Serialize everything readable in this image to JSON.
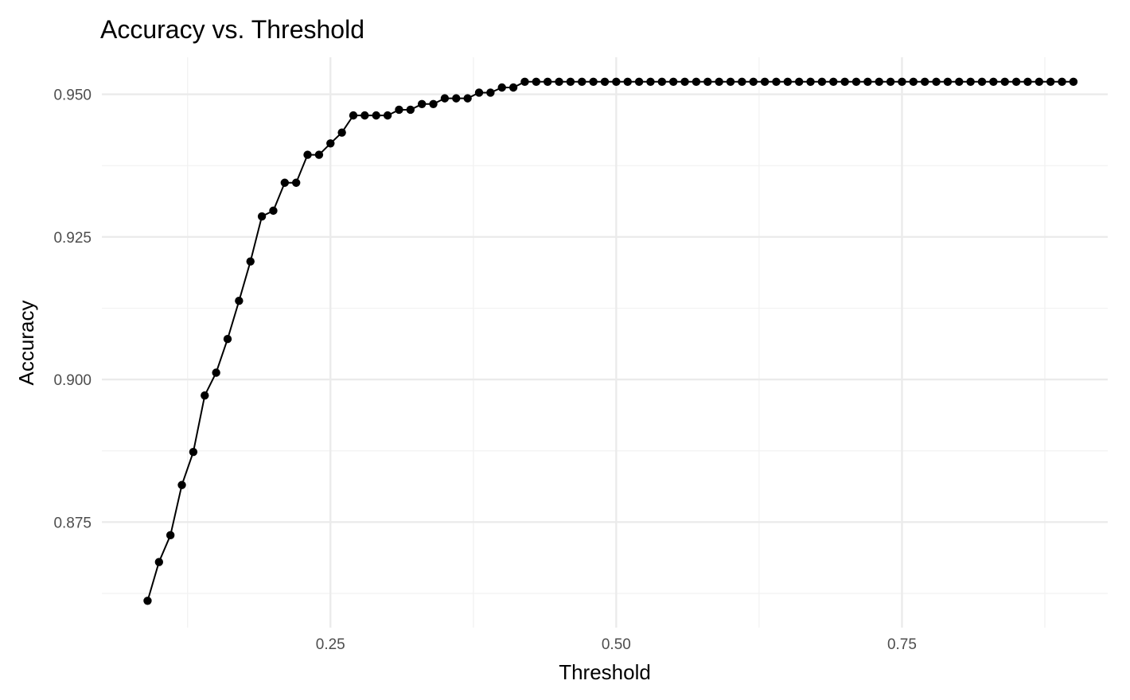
{
  "chart_data": {
    "type": "line",
    "title": "Accuracy vs. Threshold",
    "xlabel": "Threshold",
    "ylabel": "Accuracy",
    "xlim": [
      0.05,
      0.93
    ],
    "ylim": [
      0.8565,
      0.9565
    ],
    "x_ticks": [
      0.25,
      0.5,
      0.75
    ],
    "x_tick_labels": [
      "0.25",
      "0.50",
      "0.75"
    ],
    "x_minor_ticks": [
      0.125,
      0.375,
      0.625,
      0.875
    ],
    "y_ticks": [
      0.875,
      0.9,
      0.925,
      0.95
    ],
    "y_tick_labels": [
      "0.875",
      "0.900",
      "0.925",
      "0.950"
    ],
    "y_minor_ticks": [
      0.8625,
      0.8875,
      0.9125,
      0.9375
    ],
    "grid": true,
    "legend": "none",
    "colors": {
      "line": "#000000",
      "point": "#000000",
      "grid_major": "#ebebeb",
      "grid_minor": "#f2f2f2"
    },
    "x": [
      0.09,
      0.1,
      0.11,
      0.12,
      0.13,
      0.14,
      0.15,
      0.16,
      0.17,
      0.18,
      0.19,
      0.2,
      0.21,
      0.22,
      0.23,
      0.24,
      0.25,
      0.26,
      0.27,
      0.28,
      0.29,
      0.3,
      0.31,
      0.32,
      0.33,
      0.34,
      0.35,
      0.36,
      0.37,
      0.38,
      0.39,
      0.4,
      0.41,
      0.42,
      0.43,
      0.44,
      0.45,
      0.46,
      0.47,
      0.48,
      0.49,
      0.5,
      0.51,
      0.52,
      0.53,
      0.54,
      0.55,
      0.56,
      0.57,
      0.58,
      0.59,
      0.6,
      0.61,
      0.62,
      0.63,
      0.64,
      0.65,
      0.66,
      0.67,
      0.68,
      0.69,
      0.7,
      0.71,
      0.72,
      0.73,
      0.74,
      0.75,
      0.76,
      0.77,
      0.78,
      0.79,
      0.8,
      0.81,
      0.82,
      0.83,
      0.84,
      0.85,
      0.86,
      0.87,
      0.88,
      0.89,
      0.9
    ],
    "series": [
      {
        "values": [
          0.8612,
          0.868,
          0.8727,
          0.8815,
          0.8873,
          0.8972,
          0.9012,
          0.9071,
          0.9138,
          0.9207,
          0.9286,
          0.9296,
          0.9345,
          0.9345,
          0.9394,
          0.9394,
          0.9414,
          0.9433,
          0.9463,
          0.9463,
          0.9463,
          0.9463,
          0.9473,
          0.9473,
          0.9483,
          0.9483,
          0.9493,
          0.9493,
          0.9493,
          0.9503,
          0.9503,
          0.9512,
          0.9512,
          0.9522,
          0.9522,
          0.9522,
          0.9522,
          0.9522,
          0.9522,
          0.9522,
          0.9522,
          0.9522,
          0.9522,
          0.9522,
          0.9522,
          0.9522,
          0.9522,
          0.9522,
          0.9522,
          0.9522,
          0.9522,
          0.9522,
          0.9522,
          0.9522,
          0.9522,
          0.9522,
          0.9522,
          0.9522,
          0.9522,
          0.9522,
          0.9522,
          0.9522,
          0.9522,
          0.9522,
          0.9522,
          0.9522,
          0.9522,
          0.9522,
          0.9522,
          0.9522,
          0.9522,
          0.9522,
          0.9522,
          0.9522,
          0.9522,
          0.9522,
          0.9522,
          0.9522,
          0.9522,
          0.9522,
          0.9522,
          0.9522
        ]
      }
    ]
  }
}
